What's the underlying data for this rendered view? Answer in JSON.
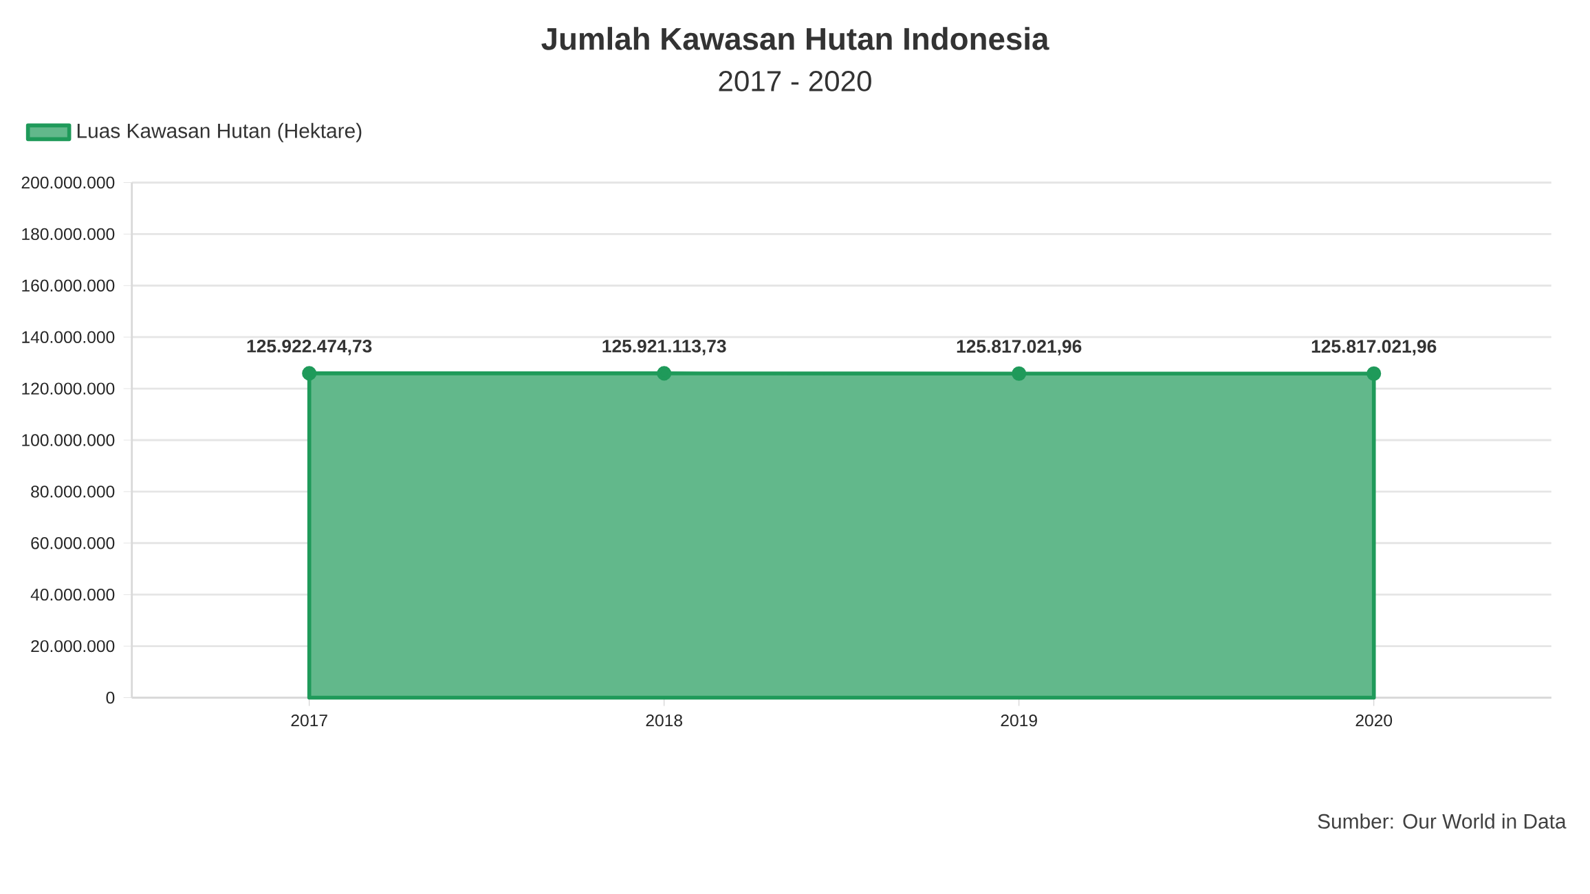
{
  "chart_data": {
    "type": "area",
    "title": "Jumlah Kawasan Hutan Indonesia",
    "subtitle": "2017 - 2020",
    "categories": [
      "2017",
      "2018",
      "2019",
      "2020"
    ],
    "series": [
      {
        "name": "Luas Kawasan Hutan (Hektare)",
        "color": "#1f9a5a",
        "values": [
          125922474.73,
          125921113.73,
          125817021.96,
          125817021.96
        ],
        "value_labels": [
          "125.922.474,73",
          "125.921.113,73",
          "125.817.021,96",
          "125.817.021,96"
        ]
      }
    ],
    "ylim": [
      0,
      200000000
    ],
    "yticks": [
      {
        "value": 0,
        "label": "0"
      },
      {
        "value": 20000000,
        "label": "20.000.000"
      },
      {
        "value": 40000000,
        "label": "40.000.000"
      },
      {
        "value": 60000000,
        "label": "60.000.000"
      },
      {
        "value": 80000000,
        "label": "80.000.000"
      },
      {
        "value": 100000000,
        "label": "100.000.000"
      },
      {
        "value": 120000000,
        "label": "120.000.000"
      },
      {
        "value": 140000000,
        "label": "140.000.000"
      },
      {
        "value": 160000000,
        "label": "160.000.000"
      },
      {
        "value": 180000000,
        "label": "180.000.000"
      },
      {
        "value": 200000000,
        "label": "200.000.000"
      }
    ],
    "grid": "y",
    "legend": "top left",
    "marker": "circle",
    "annotations": [
      "Sumber: Our World in Data"
    ]
  }
}
